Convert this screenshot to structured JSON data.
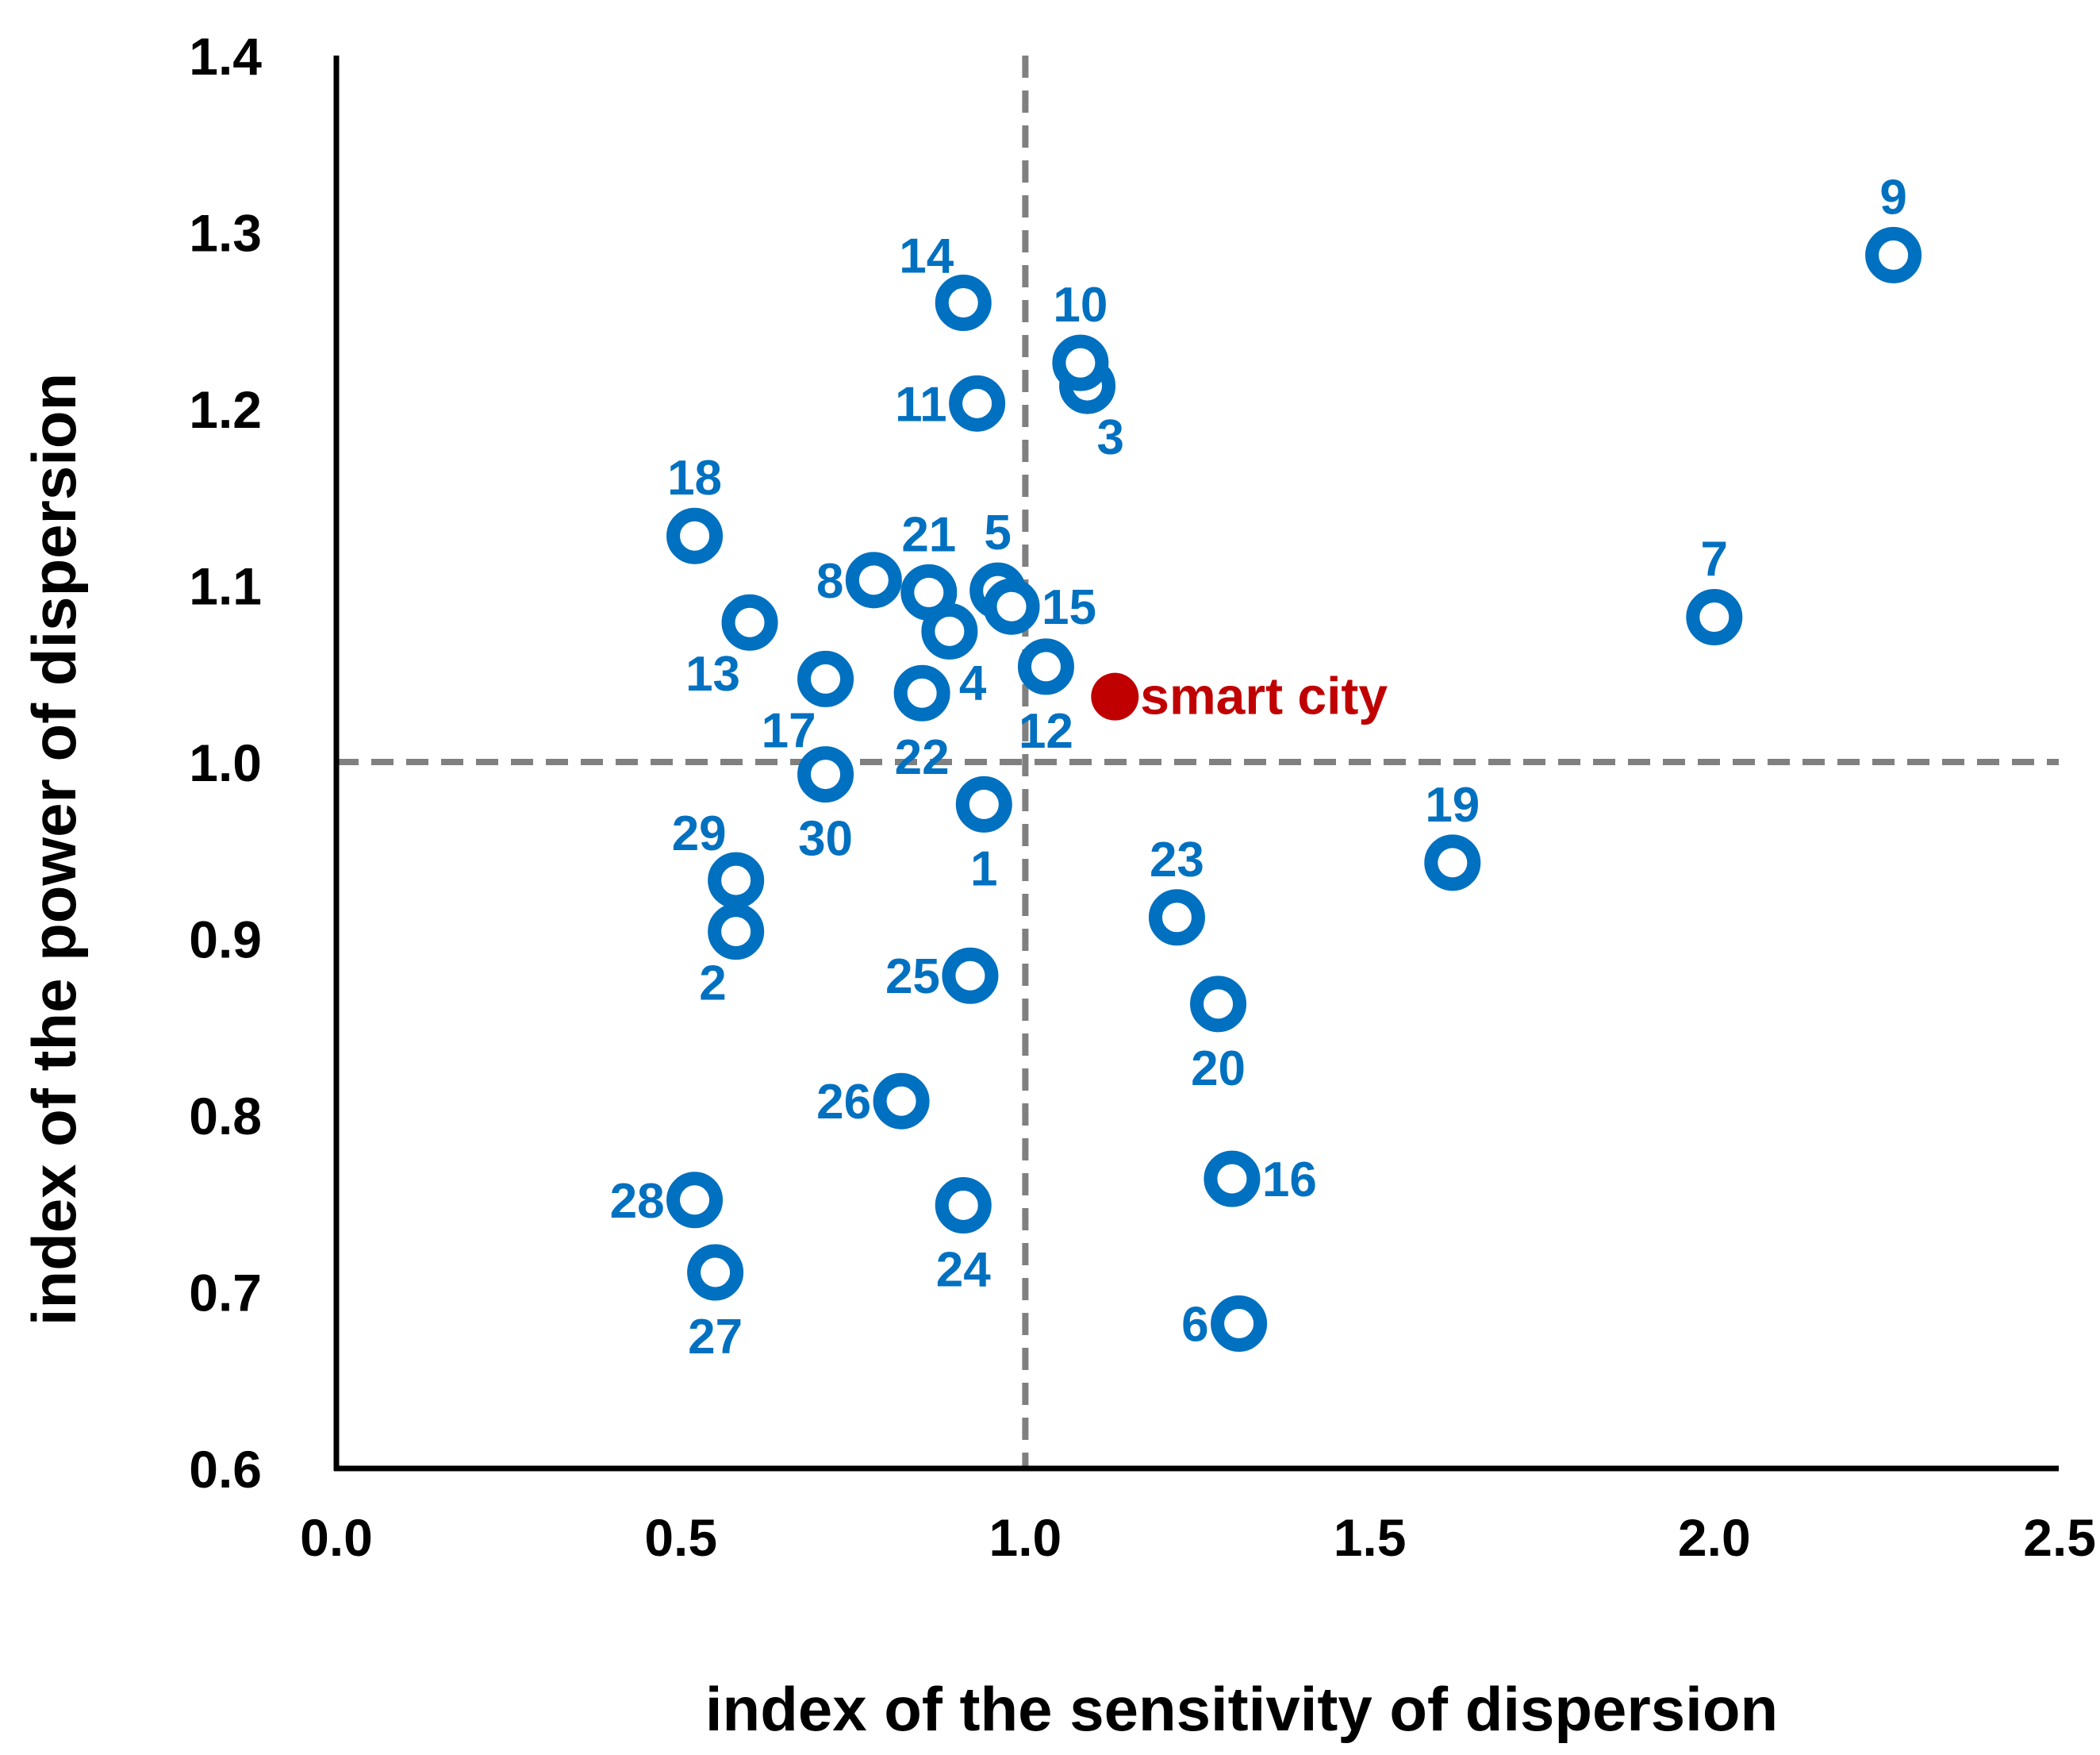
{
  "chart_data": {
    "type": "scatter",
    "title": "",
    "xlabel": "index of the sensitivity of dispersion",
    "ylabel": "index of the power of dispersion",
    "xlim": [
      0.0,
      2.5
    ],
    "ylim": [
      0.6,
      1.4
    ],
    "xticks": [
      "0.0",
      "0.5",
      "1.0",
      "1.5",
      "2.0",
      "2.5"
    ],
    "yticks": [
      "0.6",
      "0.7",
      "0.8",
      "0.9",
      "1.0",
      "1.1",
      "1.2",
      "1.3",
      "1.4"
    ],
    "reference_lines": {
      "x": 1.0,
      "y": 1.0,
      "style": "dashed"
    },
    "grid": false,
    "colors": {
      "points": "#0070c0",
      "highlight": "#c00000",
      "reference": "#808080",
      "axis": "#000000"
    },
    "points": [
      {
        "label": "1",
        "x": 0.94,
        "y": 0.976,
        "label_pos": "below"
      },
      {
        "label": "2",
        "x": 0.58,
        "y": 0.904,
        "label_pos": "below-left"
      },
      {
        "label": "3",
        "x": 1.09,
        "y": 1.213,
        "label_pos": "below-right"
      },
      {
        "label": "4",
        "x": 0.89,
        "y": 1.074,
        "label_pos": "below-right"
      },
      {
        "label": "5",
        "x": 0.96,
        "y": 1.097,
        "label_pos": "above"
      },
      {
        "label": "6",
        "x": 1.31,
        "y": 0.682,
        "label_pos": "left"
      },
      {
        "label": "7",
        "x": 2.0,
        "y": 1.082,
        "label_pos": "above"
      },
      {
        "label": "8",
        "x": 0.78,
        "y": 1.103,
        "label_pos": "left"
      },
      {
        "label": "9",
        "x": 2.26,
        "y": 1.287,
        "label_pos": "above"
      },
      {
        "label": "10",
        "x": 1.08,
        "y": 1.226,
        "label_pos": "above"
      },
      {
        "label": "11",
        "x": 0.93,
        "y": 1.203,
        "label_pos": "left"
      },
      {
        "label": "12",
        "x": 1.03,
        "y": 1.054,
        "label_pos": "below"
      },
      {
        "label": "13",
        "x": 0.6,
        "y": 1.079,
        "label_pos": "below-left"
      },
      {
        "label": "14",
        "x": 0.91,
        "y": 1.26,
        "label_pos": "above-left"
      },
      {
        "label": "15",
        "x": 0.98,
        "y": 1.088,
        "label_pos": "right"
      },
      {
        "label": "16",
        "x": 1.3,
        "y": 0.764,
        "label_pos": "right"
      },
      {
        "label": "17",
        "x": 0.71,
        "y": 1.047,
        "label_pos": "below-left"
      },
      {
        "label": "18",
        "x": 0.52,
        "y": 1.128,
        "label_pos": "above"
      },
      {
        "label": "19",
        "x": 1.62,
        "y": 0.943,
        "label_pos": "above"
      },
      {
        "label": "20",
        "x": 1.28,
        "y": 0.863,
        "label_pos": "below"
      },
      {
        "label": "21",
        "x": 0.86,
        "y": 1.096,
        "label_pos": "above"
      },
      {
        "label": "22",
        "x": 0.85,
        "y": 1.039,
        "label_pos": "below"
      },
      {
        "label": "23",
        "x": 1.22,
        "y": 0.912,
        "label_pos": "above"
      },
      {
        "label": "24",
        "x": 0.91,
        "y": 0.749,
        "label_pos": "below"
      },
      {
        "label": "25",
        "x": 0.92,
        "y": 0.879,
        "label_pos": "left"
      },
      {
        "label": "26",
        "x": 0.82,
        "y": 0.808,
        "label_pos": "left"
      },
      {
        "label": "27",
        "x": 0.55,
        "y": 0.711,
        "label_pos": "below"
      },
      {
        "label": "28",
        "x": 0.52,
        "y": 0.752,
        "label_pos": "left"
      },
      {
        "label": "29",
        "x": 0.58,
        "y": 0.933,
        "label_pos": "above-left"
      },
      {
        "label": "30",
        "x": 0.71,
        "y": 0.993,
        "label_pos": "below"
      }
    ],
    "highlight": {
      "label": "smart city",
      "x": 1.13,
      "y": 1.037
    }
  }
}
